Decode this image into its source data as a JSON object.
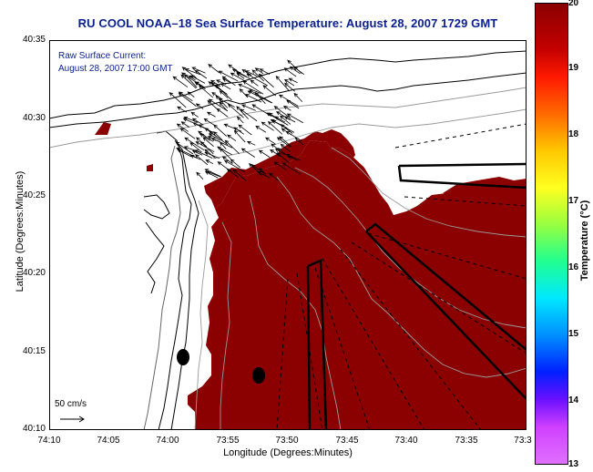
{
  "title": "RU COOL  NOAA–18  Sea Surface Temperature:  August 28, 2007 1729 GMT",
  "legend": {
    "line1": "Raw Surface Current:",
    "line2": "August 28, 2007 17:00 GMT",
    "scale_label": "50 cm/s"
  },
  "axes": {
    "xlabel": "Longitude (Degrees:Minutes)",
    "ylabel": "Latitude (Degrees:Minutes)",
    "x_ticks": [
      "74:10",
      "74:05",
      "74:00",
      "73:55",
      "73:50",
      "73:45",
      "73:40",
      "73:35",
      "73:3"
    ],
    "y_ticks": [
      "40:35",
      "40:30",
      "40:25",
      "40:20",
      "40:15",
      "40:10"
    ]
  },
  "colorbar": {
    "label": "Temperature (°C)",
    "ticks": [
      "20",
      "19",
      "18",
      "17",
      "16",
      "15",
      "14",
      "13"
    ],
    "range": [
      13,
      20
    ]
  },
  "colors": {
    "title_text": "#0a1f8f",
    "sst_fill": "#8b0000",
    "land": "#ffffff",
    "ink": "#000000"
  }
}
